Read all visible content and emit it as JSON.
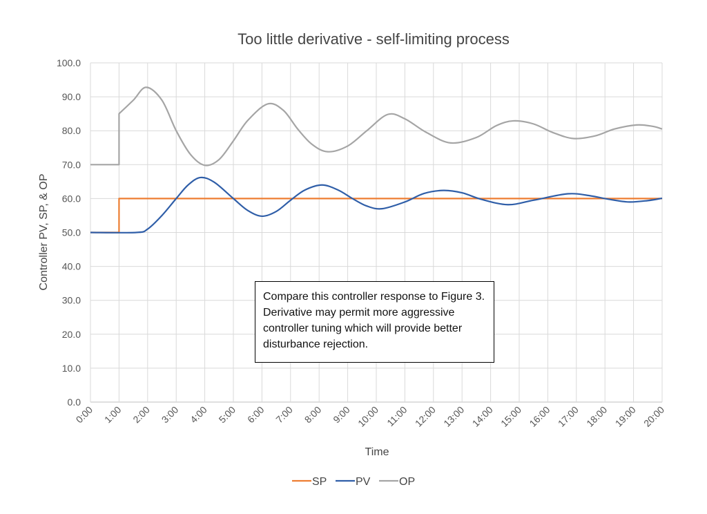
{
  "chart_data": {
    "type": "line",
    "title": "Too little derivative - self-limiting process",
    "xlabel": "Time",
    "ylabel": "Controller PV, SP, & OP",
    "ylim": [
      0,
      100
    ],
    "xlim": [
      "0:00",
      "20:00"
    ],
    "y_ticks": [
      "0.0",
      "10.0",
      "20.0",
      "30.0",
      "40.0",
      "50.0",
      "60.0",
      "70.0",
      "80.0",
      "90.0",
      "100.0"
    ],
    "x_ticks": [
      "0:00",
      "1:00",
      "2:00",
      "3:00",
      "4:00",
      "5:00",
      "6:00",
      "7:00",
      "8:00",
      "9:00",
      "10:00",
      "11:00",
      "12:00",
      "13:00",
      "14:00",
      "15:00",
      "16:00",
      "17:00",
      "18:00",
      "19:00",
      "20:00"
    ],
    "grid": true,
    "legend": "bottom",
    "annotation": "Compare this controller response to Figure 3.  Derivative may permit more aggressive controller tuning which will provide better disturbance rejection.",
    "series": [
      {
        "name": "SP",
        "color": "#ED7D31",
        "points": [
          [
            "0:00",
            50
          ],
          [
            "1:00",
            50
          ],
          [
            "1:00",
            60
          ],
          [
            "20:00",
            60
          ]
        ]
      },
      {
        "name": "PV",
        "color": "#2F5EA8",
        "points": [
          [
            "0:00",
            50
          ],
          [
            "1:36",
            50
          ],
          [
            "2:00",
            51
          ],
          [
            "2:30",
            55
          ],
          [
            "3:00",
            60
          ],
          [
            "3:25",
            64
          ],
          [
            "3:51",
            66.2
          ],
          [
            "4:20",
            64.8
          ],
          [
            "5:00",
            60
          ],
          [
            "5:30",
            56.5
          ],
          [
            "6:00",
            54.8
          ],
          [
            "6:30",
            56.2
          ],
          [
            "7:00",
            59.5
          ],
          [
            "7:30",
            62.5
          ],
          [
            "8:06",
            64
          ],
          [
            "8:40",
            62.5
          ],
          [
            "9:10",
            60
          ],
          [
            "9:40",
            57.8
          ],
          [
            "10:12",
            57
          ],
          [
            "11:00",
            59
          ],
          [
            "11:40",
            61.5
          ],
          [
            "12:21",
            62.4
          ],
          [
            "13:00",
            61.7
          ],
          [
            "13:40",
            59.8
          ],
          [
            "14:36",
            58.2
          ],
          [
            "15:30",
            59.5
          ],
          [
            "16:42",
            61.4
          ],
          [
            "17:30",
            60.8
          ],
          [
            "18:00",
            60
          ],
          [
            "18:48",
            59
          ],
          [
            "19:30",
            59.4
          ],
          [
            "20:00",
            60.1
          ]
        ]
      },
      {
        "name": "OP",
        "color": "#A5A5A5",
        "points": [
          [
            "0:00",
            70
          ],
          [
            "1:00",
            70
          ],
          [
            "1:00",
            85
          ],
          [
            "1:30",
            89
          ],
          [
            "1:57",
            92.8
          ],
          [
            "2:30",
            89
          ],
          [
            "3:00",
            80
          ],
          [
            "3:30",
            73
          ],
          [
            "4:00",
            69.8
          ],
          [
            "4:30",
            71.5
          ],
          [
            "5:00",
            77
          ],
          [
            "5:30",
            83
          ],
          [
            "6:12",
            87.9
          ],
          [
            "6:45",
            86
          ],
          [
            "7:15",
            80.5
          ],
          [
            "7:45",
            76
          ],
          [
            "8:18",
            73.8
          ],
          [
            "9:00",
            75.5
          ],
          [
            "9:40",
            80
          ],
          [
            "10:24",
            84.8
          ],
          [
            "11:00",
            83.5
          ],
          [
            "11:45",
            79.5
          ],
          [
            "12:36",
            76.4
          ],
          [
            "13:30",
            78
          ],
          [
            "14:12",
            81.5
          ],
          [
            "14:48",
            82.9
          ],
          [
            "15:30",
            82
          ],
          [
            "16:10",
            79.5
          ],
          [
            "16:54",
            77.7
          ],
          [
            "17:40",
            78.5
          ],
          [
            "18:20",
            80.5
          ],
          [
            "19:06",
            81.7
          ],
          [
            "19:40",
            81.3
          ],
          [
            "20:00",
            80.5
          ]
        ]
      }
    ]
  }
}
